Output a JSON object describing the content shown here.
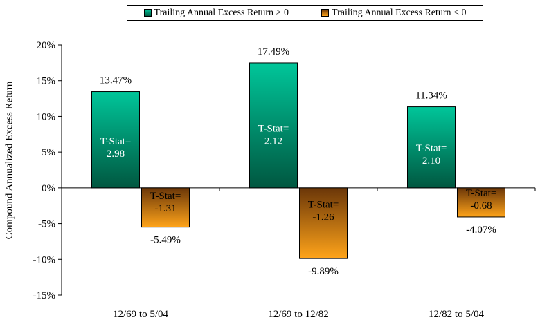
{
  "chart_data": {
    "type": "bar",
    "categories": [
      "12/69 to 5/04",
      "12/69 to 12/82",
      "12/82 to 5/04"
    ],
    "series": [
      {
        "name": "Trailing Annual Excess Return > 0",
        "values": [
          13.47,
          17.49,
          11.34
        ],
        "labels": [
          "13.47%",
          "17.49%",
          "11.34%"
        ],
        "tstat_prefix": "T-Stat=",
        "tstats": [
          "2.98",
          "2.12",
          "2.10"
        ],
        "color_top": "#00c69a",
        "color_bottom": "#005740"
      },
      {
        "name": "Trailing Annual Excess Return < 0",
        "values": [
          -5.49,
          -9.89,
          -4.07
        ],
        "labels": [
          "-5.49%",
          "-9.89%",
          "-4.07%"
        ],
        "tstat_prefix": "T-Stat=",
        "tstats": [
          "-1.31",
          "-1.26",
          "-0.68"
        ],
        "color_top": "#6a3608",
        "color_bottom": "#ffa41a"
      }
    ],
    "ylabel": "Compound Annualized Excess Return",
    "xlabel": "",
    "title": "",
    "ylim": [
      -15,
      20
    ],
    "yticks": [
      20,
      15,
      10,
      5,
      0,
      -5,
      -10,
      -15
    ],
    "ytick_labels": [
      "20%",
      "15%",
      "10%",
      "5%",
      "0%",
      "-5%",
      "-10%",
      "-15%"
    ],
    "grid": false,
    "legend_position": "top"
  }
}
